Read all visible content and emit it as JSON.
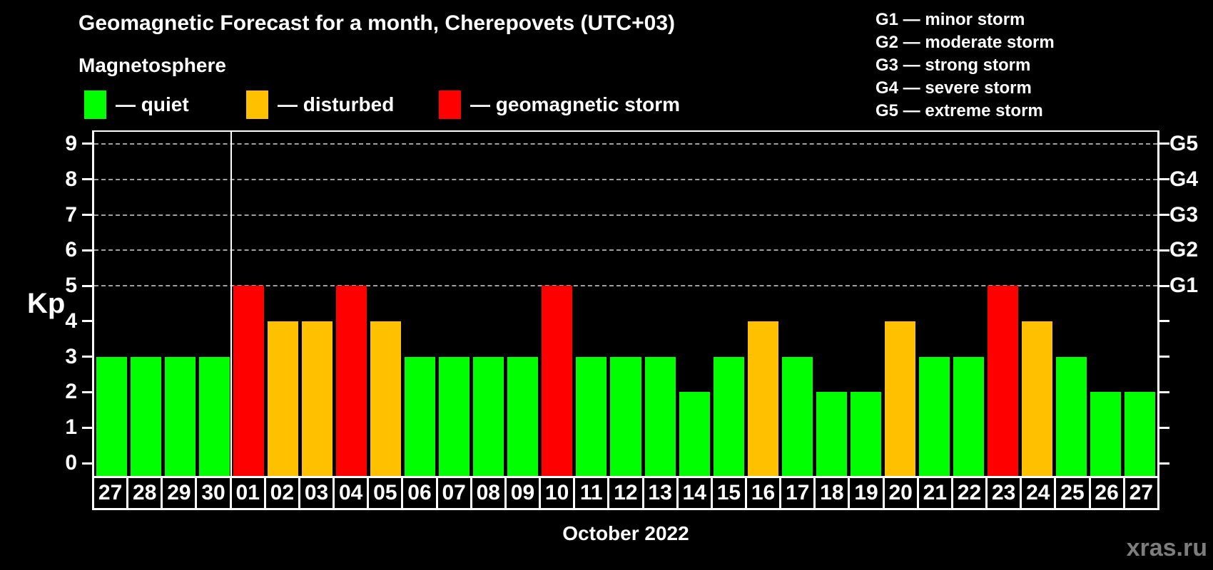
{
  "header": {
    "title": "Geomagnetic Forecast for a month, Cherepovets (UTC+03)",
    "subtitle": "Magnetosphere"
  },
  "kp_legend": {
    "items": [
      {
        "status": "quiet",
        "label": "— quiet",
        "color": "#00ff00"
      },
      {
        "status": "disturbed",
        "label": "— disturbed",
        "color": "#ffc000"
      },
      {
        "status": "storm",
        "label": "— geomagnetic storm",
        "color": "#ff0000"
      }
    ]
  },
  "g_legend": {
    "items": [
      "G1 — minor storm",
      "G2 — moderate storm",
      "G3 — strong storm",
      "G4 — severe storm",
      "G5 — extreme storm"
    ]
  },
  "axes": {
    "y_label": "Kp",
    "x_label": "October 2022",
    "y_ticks": [
      0,
      1,
      2,
      3,
      4,
      5,
      6,
      7,
      8,
      9
    ],
    "g_levels": [
      {
        "value": 5,
        "label": "G1"
      },
      {
        "value": 6,
        "label": "G2"
      },
      {
        "value": 7,
        "label": "G3"
      },
      {
        "value": 8,
        "label": "G4"
      },
      {
        "value": 9,
        "label": "G5"
      }
    ]
  },
  "footer": {
    "watermark": "xras.ru"
  },
  "chart_data": {
    "type": "bar",
    "title": "Geomagnetic Forecast for a month, Cherepovets (UTC+03)",
    "xlabel": "October 2022",
    "ylabel": "Kp",
    "ylim": [
      0,
      9
    ],
    "grid_on": true,
    "grid_values": [
      5,
      6,
      7,
      8,
      9
    ],
    "month_boundary_before_index": 4,
    "categories": [
      "27",
      "28",
      "29",
      "30",
      "01",
      "02",
      "03",
      "04",
      "05",
      "06",
      "07",
      "08",
      "09",
      "10",
      "11",
      "12",
      "13",
      "14",
      "15",
      "16",
      "17",
      "18",
      "19",
      "20",
      "21",
      "22",
      "23",
      "24",
      "25",
      "26",
      "27"
    ],
    "values": [
      3,
      3,
      3,
      3,
      5,
      4,
      4,
      5,
      4,
      3,
      3,
      3,
      3,
      5,
      3,
      3,
      3,
      2,
      3,
      4,
      3,
      2,
      2,
      4,
      3,
      3,
      5,
      4,
      3,
      2,
      2
    ],
    "statuses": [
      "quiet",
      "quiet",
      "quiet",
      "quiet",
      "storm",
      "disturbed",
      "disturbed",
      "storm",
      "disturbed",
      "quiet",
      "quiet",
      "quiet",
      "quiet",
      "storm",
      "quiet",
      "quiet",
      "quiet",
      "quiet",
      "quiet",
      "disturbed",
      "quiet",
      "quiet",
      "quiet",
      "disturbed",
      "quiet",
      "quiet",
      "storm",
      "disturbed",
      "quiet",
      "quiet",
      "quiet"
    ],
    "status_colors": {
      "quiet": "#00ff00",
      "disturbed": "#ffc000",
      "storm": "#ff0000"
    }
  }
}
